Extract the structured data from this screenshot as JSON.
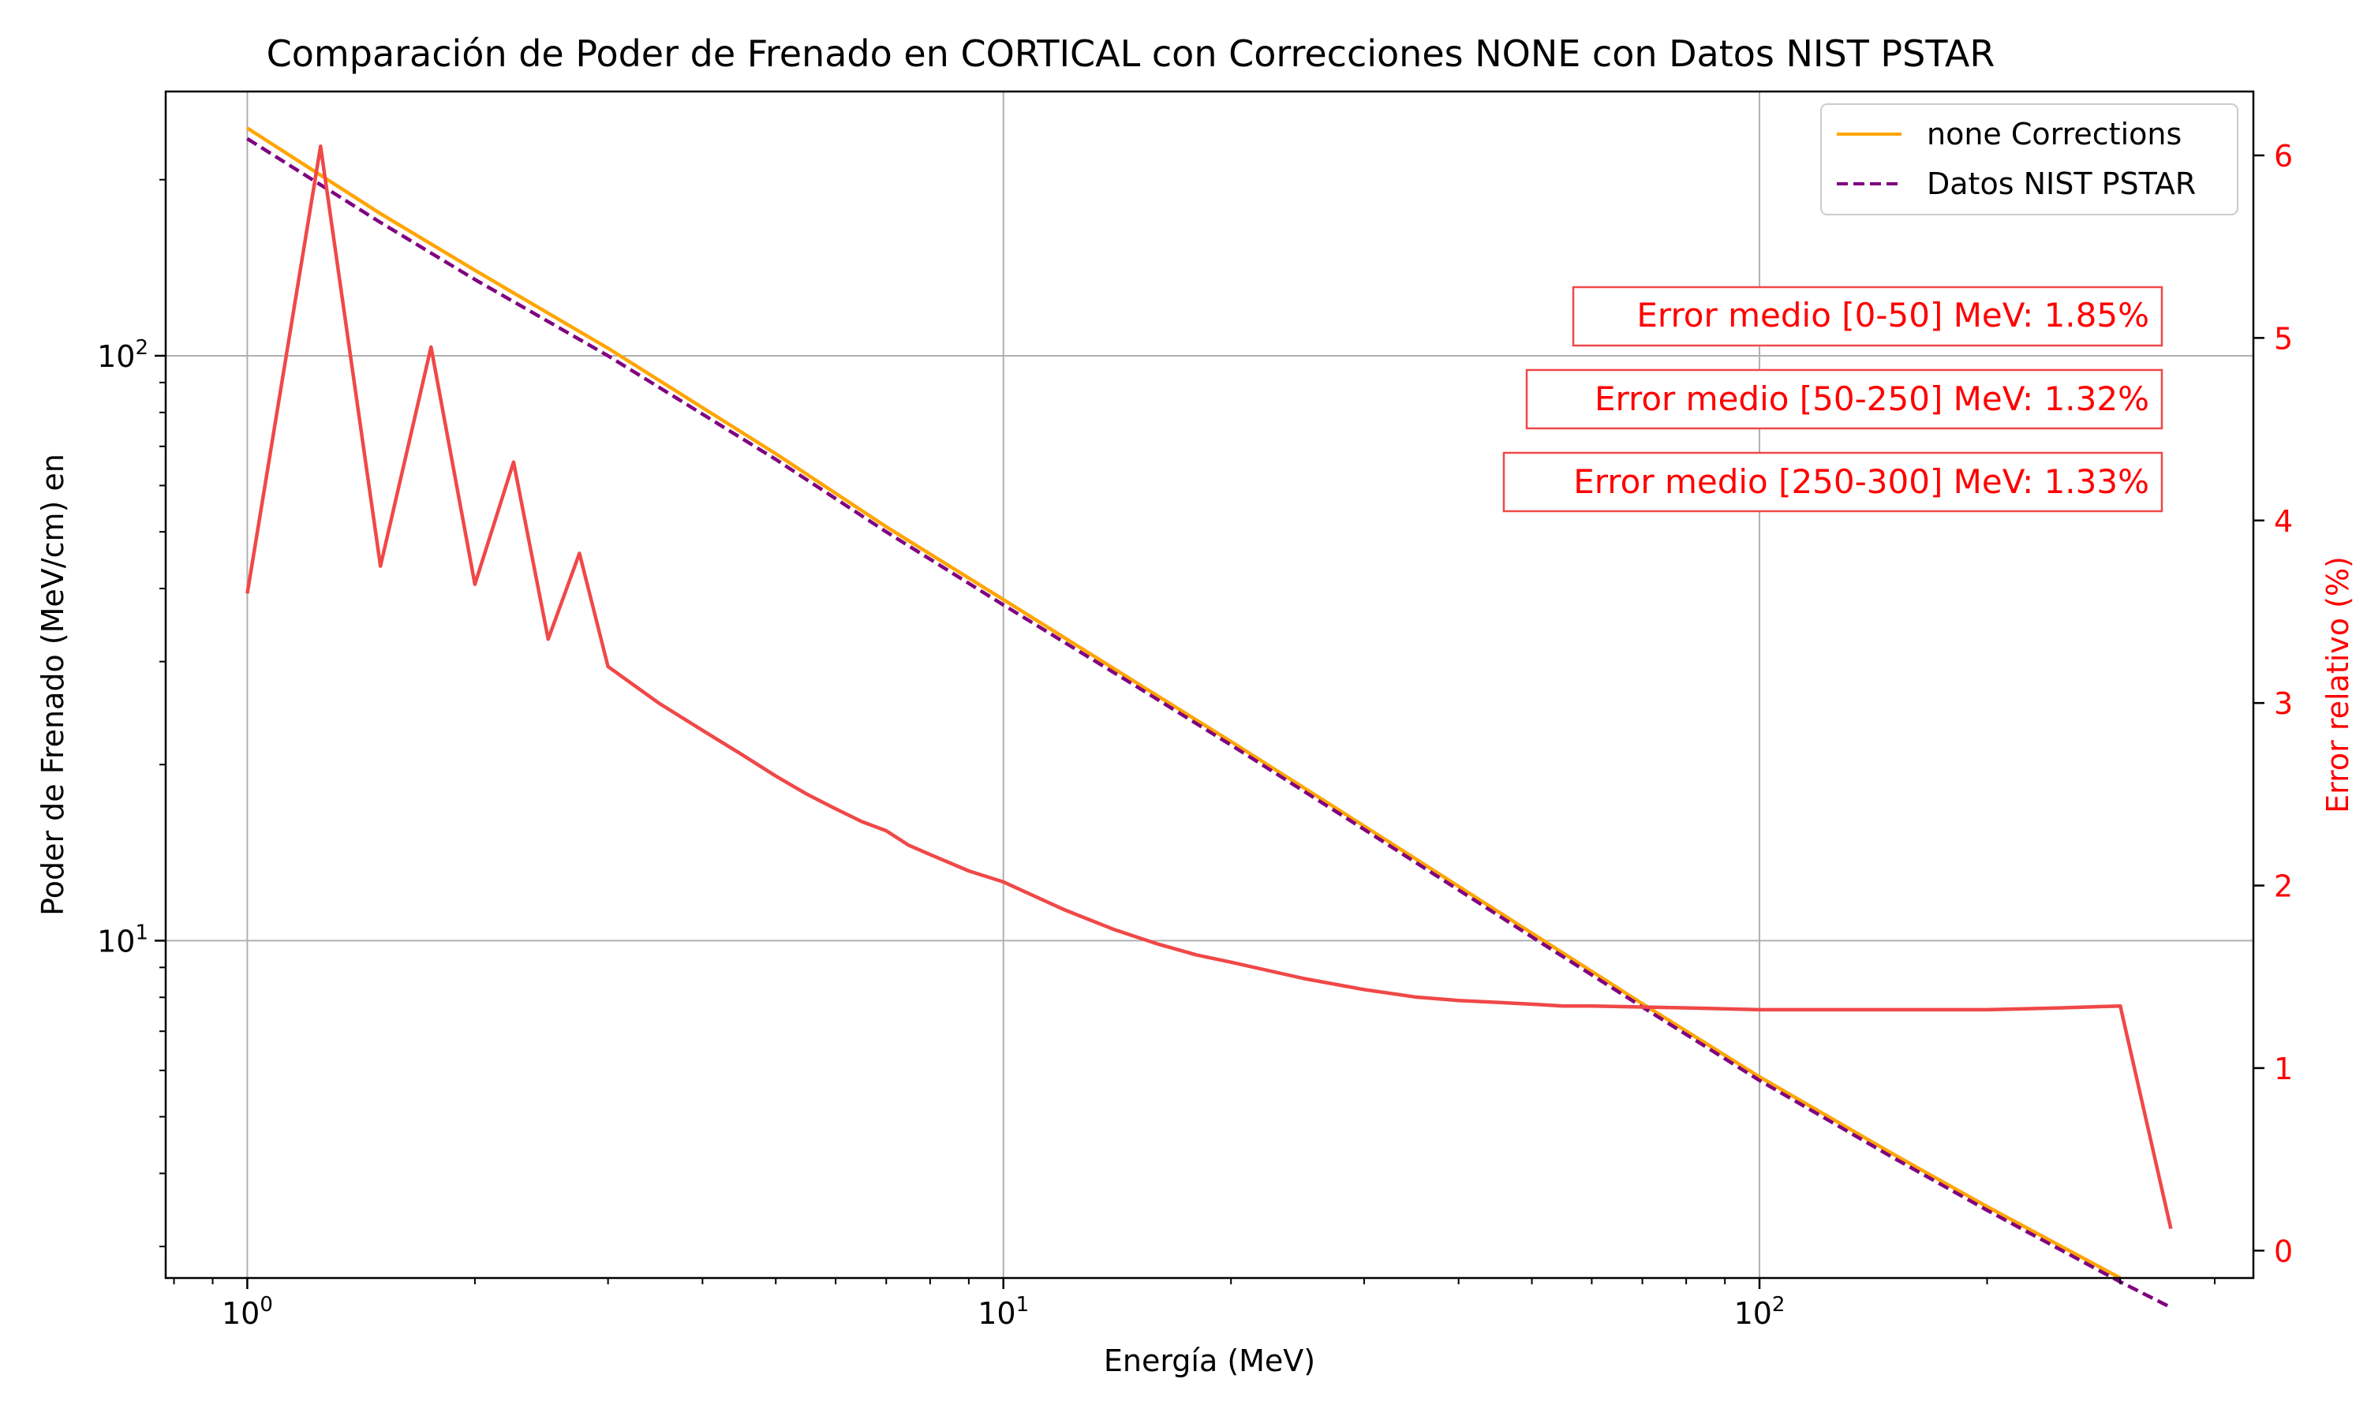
{
  "chart_data": {
    "type": "line",
    "title": "Comparación de Poder de Frenado en CORTICAL con Correcciones NONE con Datos NIST PSTAR",
    "xlabel": "Energía (MeV)",
    "ylabel": "Poder de Frenado (MeV/cm) en",
    "y2label": "Error relativo (%)",
    "xscale": "log",
    "yscale": "log",
    "xlim": [
      0.78,
      450
    ],
    "ylim": [
      2.65,
      283
    ],
    "y2lim": [
      -0.15,
      6.35
    ],
    "grid": true,
    "legend_position": "top-right",
    "x_ticks": [
      {
        "value": 1,
        "base": "10",
        "exp": "0"
      },
      {
        "value": 10,
        "base": "10",
        "exp": "1"
      },
      {
        "value": 100,
        "base": "10",
        "exp": "2"
      }
    ],
    "y_ticks": [
      {
        "value": 10,
        "base": "10",
        "exp": "1"
      },
      {
        "value": 100,
        "base": "10",
        "exp": "2"
      }
    ],
    "y2_ticks": [
      "0",
      "1",
      "2",
      "3",
      "4",
      "5",
      "6"
    ],
    "colors": {
      "none": "#ffa500",
      "nist": "#800080",
      "error": "#f04848",
      "annotation": "#ff0000"
    },
    "series": [
      {
        "name": "none Corrections",
        "axis": "left",
        "style": "solid",
        "x": [
          1,
          1.5,
          2,
          3,
          5,
          7,
          10,
          15,
          20,
          30,
          50,
          70,
          100,
          150,
          200,
          300
        ],
        "y": [
          245,
          175,
          140,
          103,
          68,
          51,
          38.3,
          27.6,
          21.9,
          15.7,
          10.3,
          7.8,
          5.85,
          4.32,
          3.51,
          2.65
        ]
      },
      {
        "name": "Datos NIST PSTAR",
        "axis": "left",
        "style": "dashed",
        "x": [
          1,
          1.5,
          2,
          3,
          5,
          7,
          10,
          15,
          20,
          30,
          50,
          70,
          100,
          150,
          200,
          300,
          350
        ],
        "y": [
          235,
          169,
          135,
          100,
          66.5,
          50,
          37.5,
          27.2,
          21.6,
          15.5,
          10.15,
          7.7,
          5.77,
          4.26,
          3.46,
          2.61,
          2.36
        ]
      },
      {
        "name": "Error relativo",
        "axis": "right",
        "style": "solid",
        "x": [
          1,
          1.25,
          1.5,
          1.75,
          2,
          2.25,
          2.5,
          2.75,
          3,
          3.5,
          4,
          4.5,
          5,
          5.5,
          6,
          6.5,
          7,
          7.5,
          8,
          9,
          10,
          12,
          14,
          16,
          18,
          20,
          25,
          30,
          35,
          40,
          45,
          50,
          55,
          60,
          80,
          100,
          150,
          200,
          250,
          300,
          350
        ],
        "y": [
          3.6,
          6.05,
          3.75,
          4.95,
          3.65,
          4.32,
          3.35,
          3.82,
          3.2,
          3.0,
          2.85,
          2.72,
          2.6,
          2.5,
          2.42,
          2.35,
          2.3,
          2.22,
          2.17,
          2.08,
          2.02,
          1.87,
          1.76,
          1.68,
          1.62,
          1.58,
          1.49,
          1.43,
          1.39,
          1.37,
          1.36,
          1.35,
          1.34,
          1.34,
          1.33,
          1.32,
          1.32,
          1.32,
          1.33,
          1.34,
          0.12
        ]
      }
    ],
    "annotations": [
      "Error medio [0-50] MeV: 1.85%",
      "Error medio [50-250] MeV: 1.32%",
      "Error medio [250-300] MeV: 1.33%"
    ]
  }
}
